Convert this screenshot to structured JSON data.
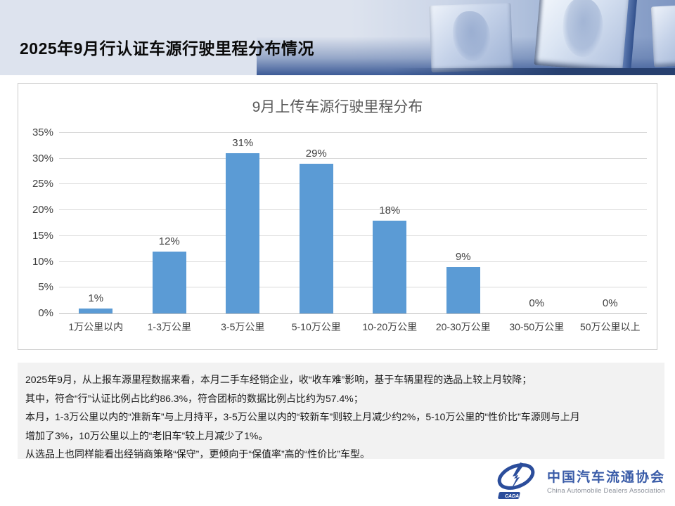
{
  "header": {
    "title": "2025年9月行认证车源行驶里程分布情况"
  },
  "chart_data": {
    "type": "bar",
    "title": "9月上传车源行驶里程分布",
    "categories": [
      "1万公里以内",
      "1-3万公里",
      "3-5万公里",
      "5-10万公里",
      "10-20万公里",
      "20-30万公里",
      "30-50万公里",
      "50万公里以上"
    ],
    "values": [
      1,
      12,
      31,
      29,
      18,
      9,
      0,
      0
    ],
    "value_labels": [
      "1%",
      "12%",
      "31%",
      "29%",
      "18%",
      "9%",
      "0%",
      "0%"
    ],
    "xlabel": "",
    "ylabel": "",
    "ylim": [
      0,
      35
    ],
    "ytick_step": 5,
    "ytick_labels": [
      "0%",
      "5%",
      "10%",
      "15%",
      "20%",
      "25%",
      "30%",
      "35%"
    ],
    "grid": true,
    "legend": "none",
    "bar_color": "#5B9BD5",
    "gridline_color": "#d9d9d9",
    "title_color": "#595959",
    "label_color": "#404040"
  },
  "summary": {
    "lines": [
      "2025年9月，从上报车源里程数据来看，本月二手车经销企业，收“收车难”影响，基于车辆里程的选品上较上月较降；",
      "其中，符合“行”认证比例占比约86.3%，符合团标的数据比例占比约为57.4%；",
      "本月，1-3万公里以内的“准新车”与上月持平，3-5万公里以内的“较新车”则较上月减少约2%，5-10万公里的“性价比”车源则与上月",
      "增加了3%，10万公里以上的“老旧车”较上月减少了1%。",
      "从选品上也同样能看出经销商策略“保守”，更倾向于“保值率”高的“性价比”车型。"
    ]
  },
  "footer_logo": {
    "acronym": "CADA",
    "org_name_zh": "中国汽车流通协会",
    "org_name_en": "China Automobile Dealers Association",
    "brand_blue": "#2b4d9b"
  }
}
